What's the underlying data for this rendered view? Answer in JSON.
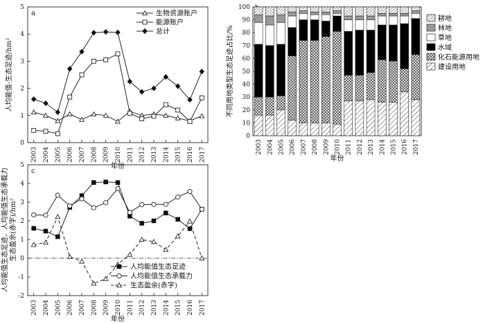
{
  "chart_data": [
    {
      "panel": "a",
      "type": "line",
      "categories": [
        "2003",
        "2004",
        "2005",
        "2006",
        "2007",
        "2008",
        "2009",
        "2010",
        "2011",
        "2012",
        "2013",
        "2014",
        "2015",
        "2016",
        "2017"
      ],
      "ylabel": "人均能值-生态足迹/hm²",
      "xlabel": "年份",
      "ylim": [
        0,
        5
      ],
      "yticks": [
        0,
        1,
        2,
        3,
        4,
        5
      ],
      "legend_position": "top-right",
      "series": [
        {
          "name": "生物资源账户",
          "marker": "triangle-open",
          "values": [
            1.12,
            1.0,
            0.8,
            1.05,
            0.85,
            1.05,
            1.0,
            0.78,
            1.15,
            1.0,
            1.05,
            1.0,
            0.9,
            0.8,
            0.98
          ]
        },
        {
          "name": "能源账户",
          "marker": "square-open",
          "values": [
            0.45,
            0.42,
            0.33,
            1.68,
            2.5,
            3.0,
            3.05,
            3.27,
            1.08,
            0.88,
            0.97,
            1.4,
            1.2,
            0.78,
            1.65
          ]
        },
        {
          "name": "总计",
          "marker": "diamond-filled",
          "values": [
            1.6,
            1.45,
            1.12,
            2.72,
            3.35,
            4.05,
            4.08,
            4.06,
            2.25,
            1.87,
            2.0,
            2.42,
            2.08,
            1.58,
            2.62
          ]
        }
      ]
    },
    {
      "panel": "b",
      "type": "bar",
      "stacked": true,
      "categories": [
        "2003",
        "2004",
        "2005",
        "2006",
        "2007",
        "2008",
        "2009",
        "2010",
        "2011",
        "2012",
        "2013",
        "2014",
        "2015",
        "2016",
        "2017"
      ],
      "ylabel": "不同用地类型生态足迹占比/%",
      "xlabel": "年份",
      "ylim": [
        0,
        100
      ],
      "yticks": [
        0,
        10,
        20,
        30,
        40,
        50,
        60,
        70,
        80,
        90,
        100
      ],
      "legend_position": "right",
      "series": [
        {
          "name": "建设用地",
          "pattern": "diag-sparse",
          "values": [
            16,
            16,
            20,
            12,
            10,
            10,
            10,
            9,
            27,
            27,
            28,
            26,
            26,
            34,
            28
          ]
        },
        {
          "name": "化石能源用地",
          "pattern": "crosshatch",
          "values": [
            14,
            14,
            11,
            50,
            64,
            64,
            67,
            72,
            20,
            20,
            21,
            33,
            32,
            18,
            35
          ]
        },
        {
          "name": "水域",
          "pattern": "black",
          "values": [
            41,
            40,
            40,
            22,
            16,
            16,
            12,
            12,
            34,
            35,
            33,
            27,
            28,
            35,
            28
          ]
        },
        {
          "name": "草地",
          "pattern": "white",
          "values": [
            17,
            16,
            17,
            9,
            5,
            4,
            5,
            2,
            9,
            8,
            8,
            7,
            7,
            6,
            4
          ]
        },
        {
          "name": "林地",
          "pattern": "gray",
          "values": [
            6,
            7,
            6,
            3,
            2,
            2,
            2,
            2,
            3,
            3,
            3,
            2,
            2,
            2,
            2
          ]
        },
        {
          "name": "耕地",
          "pattern": "diag-dense",
          "values": [
            6,
            7,
            6,
            4,
            3,
            4,
            4,
            3,
            7,
            7,
            7,
            5,
            5,
            5,
            3
          ]
        }
      ]
    },
    {
      "panel": "c",
      "type": "line",
      "categories": [
        "2003",
        "2004",
        "2005",
        "2006",
        "2007",
        "2008",
        "2009",
        "2010",
        "2011",
        "2012",
        "2013",
        "2014",
        "2015",
        "2016",
        "2017"
      ],
      "ylabel": "人均能值生态足迹、人均能值生态承载力 生态盈余(赤字)/hm²",
      "xlabel": "年份",
      "ylim": [
        -2,
        5
      ],
      "yticks": [
        -2,
        -1,
        0,
        1,
        2,
        3,
        4,
        5
      ],
      "zero_line": "dash-dot",
      "legend_position": "bottom-right",
      "series": [
        {
          "name": "人均能值生态足迹",
          "marker": "square-filled",
          "dash": "solid",
          "values": [
            1.6,
            1.45,
            1.15,
            2.72,
            3.35,
            4.05,
            4.08,
            4.05,
            2.25,
            1.87,
            2.0,
            2.42,
            2.08,
            1.58,
            2.62
          ]
        },
        {
          "name": "人均能值生态承载力",
          "marker": "circle-open",
          "dash": "solid",
          "values": [
            2.32,
            2.3,
            3.37,
            2.8,
            3.18,
            2.7,
            2.97,
            3.72,
            2.45,
            2.87,
            2.88,
            2.88,
            3.27,
            3.57,
            2.62
          ]
        },
        {
          "name": "生态盈余(赤字)",
          "marker": "triangle-open",
          "dash": "dashed",
          "values": [
            0.72,
            0.85,
            2.22,
            0.08,
            -0.17,
            -1.35,
            -1.1,
            -0.33,
            0.2,
            1.0,
            0.88,
            0.46,
            1.18,
            1.98,
            0.0
          ]
        }
      ]
    }
  ]
}
